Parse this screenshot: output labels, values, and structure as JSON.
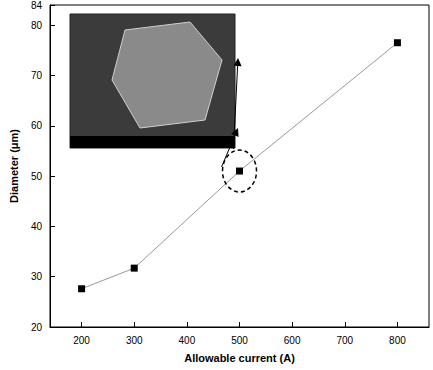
{
  "chart_data": {
    "type": "line",
    "x_label": "Allowable current (A)",
    "y_label": "Diameter (μm)",
    "x": [
      200,
      300,
      500,
      800
    ],
    "values": [
      27.6,
      31.7,
      51,
      76.5
    ],
    "color": "#999999",
    "marker": "square",
    "xlim": [
      140,
      860
    ],
    "xticks": [
      200,
      300,
      400,
      500,
      600,
      700,
      800
    ],
    "ylim": [
      20,
      84
    ],
    "yticks": [
      20,
      30,
      40,
      50,
      60,
      70,
      80
    ],
    "grid": false
  }
}
